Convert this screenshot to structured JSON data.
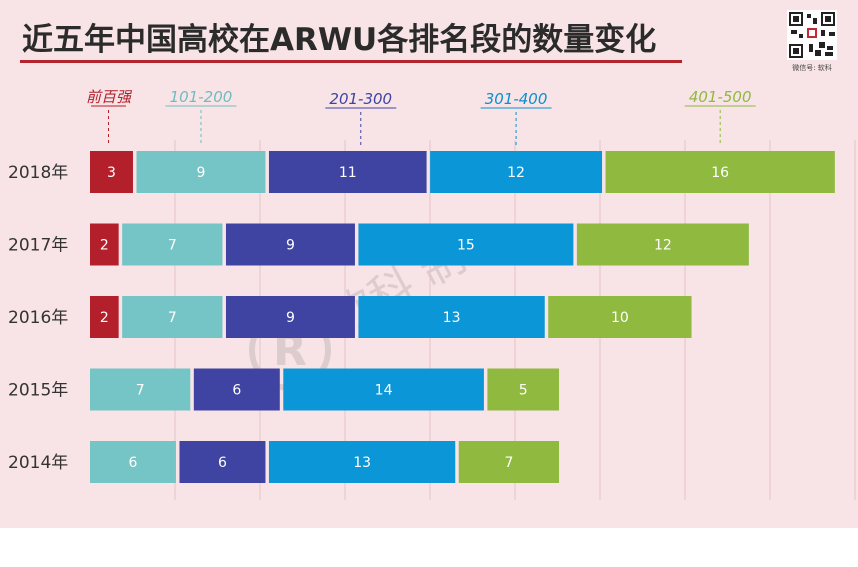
{
  "header": {
    "title": "近五年中国高校在ARWU各排名段的数量变化",
    "qr_caption": "微信号: 软科"
  },
  "watermark": {
    "text": "软科 制作",
    "logo": "R"
  },
  "colors": {
    "top100": "#b3202c",
    "r101_200": "#75c5c7",
    "r201_300": "#3f44a2",
    "r301_400": "#0b96d8",
    "r401_500": "#8fb93f",
    "accent": "#b3242c"
  },
  "chart_data": {
    "type": "bar",
    "orientation": "horizontal",
    "stacked": true,
    "title": "近五年中国高校在ARWU各排名段的数量变化",
    "categories": [
      "2018年",
      "2017年",
      "2016年",
      "2015年",
      "2014年"
    ],
    "series": [
      {
        "name": "前百强",
        "values": [
          3,
          2,
          2,
          0,
          0
        ]
      },
      {
        "name": "101-200",
        "values": [
          9,
          7,
          7,
          7,
          6
        ]
      },
      {
        "name": "201-300",
        "values": [
          11,
          9,
          9,
          6,
          6
        ]
      },
      {
        "name": "301-400",
        "values": [
          12,
          15,
          13,
          14,
          13
        ]
      },
      {
        "name": "401-500",
        "values": [
          16,
          12,
          10,
          5,
          7
        ]
      }
    ],
    "legend_position": "top, above bars",
    "grid": true
  }
}
